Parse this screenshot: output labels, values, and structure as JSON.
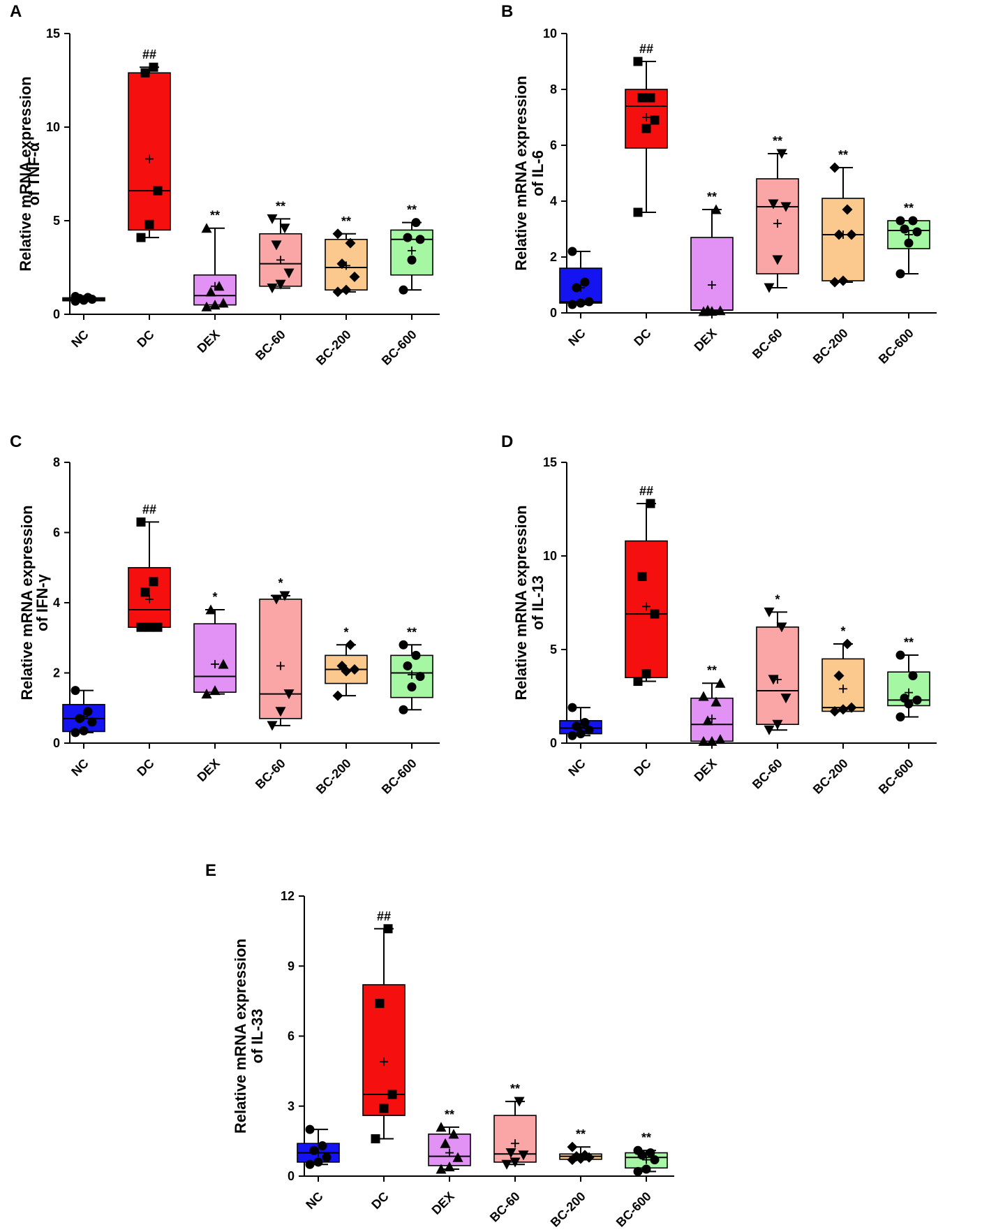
{
  "categories": [
    "NC",
    "DC",
    "DEX",
    "BC-60",
    "BC-200",
    "BC-600"
  ],
  "colors": {
    "NC": "#1414f0",
    "DC": "#f50f0f",
    "DEX": "#e291f5",
    "BC-60": "#fba6a6",
    "BC-200": "#fbc98e",
    "BC-600": "#a6f7a4",
    "axis": "#000000"
  },
  "chart_data": [
    {
      "type": "box",
      "panel": "A",
      "ylabel_line1": "Relative mRNA expression",
      "ylabel_line2": "of TNF-α",
      "ylim": [
        0,
        15
      ],
      "yticks": [
        0,
        5,
        10,
        15
      ],
      "marker": [
        "circle",
        "square",
        "triangle",
        "inverted-triangle",
        "diamond",
        "circle"
      ],
      "series": [
        {
          "name": "NC",
          "min": 0.7,
          "q1": 0.72,
          "median": 0.8,
          "q3": 0.88,
          "max": 0.95,
          "mean": 0.8,
          "sig": "",
          "points": [
            0.7,
            0.75,
            0.8,
            0.85,
            0.9,
            0.95
          ]
        },
        {
          "name": "DC",
          "min": 4.1,
          "q1": 4.5,
          "median": 6.6,
          "q3": 12.9,
          "max": 13.2,
          "mean": 8.3,
          "sig": "##",
          "points": [
            4.1,
            4.8,
            6.6,
            12.9,
            13.2
          ]
        },
        {
          "name": "DEX",
          "min": 0.4,
          "q1": 0.5,
          "median": 1.0,
          "q3": 2.1,
          "max": 4.6,
          "mean": 1.5,
          "sig": "**",
          "points": [
            0.4,
            0.5,
            0.6,
            1.2,
            1.5,
            4.6
          ]
        },
        {
          "name": "BC-60",
          "min": 1.4,
          "q1": 1.5,
          "median": 2.7,
          "q3": 4.3,
          "max": 5.1,
          "mean": 2.9,
          "sig": "**",
          "points": [
            1.4,
            1.6,
            2.2,
            3.7,
            4.6,
            5.1
          ]
        },
        {
          "name": "BC-200",
          "min": 1.2,
          "q1": 1.3,
          "median": 2.5,
          "q3": 4.0,
          "max": 4.3,
          "mean": 2.6,
          "sig": "**",
          "points": [
            1.2,
            1.3,
            2.0,
            2.7,
            3.8,
            4.3
          ]
        },
        {
          "name": "BC-600",
          "min": 1.3,
          "q1": 2.1,
          "median": 4.0,
          "q3": 4.5,
          "max": 4.9,
          "mean": 3.4,
          "sig": "**",
          "points": [
            1.3,
            2.9,
            4.0,
            4.1,
            4.9
          ]
        }
      ]
    },
    {
      "type": "box",
      "panel": "B",
      "ylabel_line1": "Relative mRNA expression",
      "ylabel_line2": "of IL-6",
      "ylim": [
        0,
        10
      ],
      "yticks": [
        0,
        2,
        4,
        6,
        8,
        10
      ],
      "marker": [
        "circle",
        "square",
        "triangle",
        "inverted-triangle",
        "diamond",
        "circle"
      ],
      "series": [
        {
          "name": "NC",
          "min": 0.3,
          "q1": 0.35,
          "median": 0.4,
          "q3": 1.6,
          "max": 2.2,
          "mean": 0.9,
          "sig": "",
          "points": [
            0.3,
            0.35,
            0.4,
            0.9,
            1.1,
            2.2
          ]
        },
        {
          "name": "DC",
          "min": 3.6,
          "q1": 5.9,
          "median": 7.4,
          "q3": 8.0,
          "max": 9.0,
          "mean": 7.0,
          "sig": "##",
          "points": [
            3.6,
            6.6,
            6.9,
            7.7,
            7.7,
            9.0
          ]
        },
        {
          "name": "DEX",
          "min": 0.05,
          "q1": 0.1,
          "median": 0.1,
          "q3": 2.7,
          "max": 3.7,
          "mean": 1.0,
          "sig": "**",
          "points": [
            0.05,
            0.06,
            0.08,
            0.1,
            3.7
          ]
        },
        {
          "name": "BC-60",
          "min": 0.9,
          "q1": 1.4,
          "median": 3.8,
          "q3": 4.8,
          "max": 5.7,
          "mean": 3.2,
          "sig": "**",
          "points": [
            0.9,
            1.9,
            3.8,
            3.9,
            5.7
          ]
        },
        {
          "name": "BC-200",
          "min": 1.1,
          "q1": 1.15,
          "median": 2.8,
          "q3": 4.1,
          "max": 5.2,
          "mean": 2.8,
          "sig": "**",
          "points": [
            1.1,
            1.15,
            2.8,
            2.8,
            3.7,
            5.2
          ]
        },
        {
          "name": "BC-600",
          "min": 1.4,
          "q1": 2.3,
          "median": 2.95,
          "q3": 3.3,
          "max": 3.3,
          "mean": 2.8,
          "sig": "**",
          "points": [
            1.4,
            2.5,
            2.9,
            3.0,
            3.3,
            3.3
          ]
        }
      ]
    },
    {
      "type": "box",
      "panel": "C",
      "ylabel_line1": "Relative mRNA expression",
      "ylabel_line2": "of IFN-γ",
      "ylim": [
        0,
        8
      ],
      "yticks": [
        0,
        2,
        4,
        6,
        8
      ],
      "marker": [
        "circle",
        "square",
        "triangle",
        "inverted-triangle",
        "diamond",
        "circle"
      ],
      "series": [
        {
          "name": "NC",
          "min": 0.3,
          "q1": 0.33,
          "median": 0.7,
          "q3": 1.1,
          "max": 1.5,
          "mean": 0.75,
          "sig": "",
          "points": [
            0.3,
            0.35,
            0.6,
            0.7,
            0.9,
            1.5
          ]
        },
        {
          "name": "DC",
          "min": 3.3,
          "q1": 3.3,
          "median": 3.8,
          "q3": 5.0,
          "max": 6.3,
          "mean": 4.1,
          "sig": "##",
          "points": [
            3.3,
            3.3,
            3.3,
            4.3,
            4.6,
            6.3
          ]
        },
        {
          "name": "DEX",
          "min": 1.4,
          "q1": 1.45,
          "median": 1.9,
          "q3": 3.4,
          "max": 3.8,
          "mean": 2.25,
          "sig": "*",
          "points": [
            1.4,
            1.5,
            2.25,
            3.8
          ]
        },
        {
          "name": "BC-60",
          "min": 0.5,
          "q1": 0.7,
          "median": 1.4,
          "q3": 4.1,
          "max": 4.2,
          "mean": 2.2,
          "sig": "*",
          "points": [
            0.5,
            0.9,
            1.4,
            4.1,
            4.2
          ]
        },
        {
          "name": "BC-200",
          "min": 1.35,
          "q1": 1.7,
          "median": 2.1,
          "q3": 2.5,
          "max": 2.8,
          "mean": 2.1,
          "sig": "*",
          "points": [
            1.35,
            2.05,
            2.1,
            2.2,
            2.8
          ]
        },
        {
          "name": "BC-600",
          "min": 0.95,
          "q1": 1.3,
          "median": 2.0,
          "q3": 2.5,
          "max": 2.8,
          "mean": 1.95,
          "sig": "**",
          "points": [
            0.95,
            1.6,
            1.9,
            2.2,
            2.5,
            2.8
          ]
        }
      ]
    },
    {
      "type": "box",
      "panel": "D",
      "ylabel_line1": "Relative mRNA expression",
      "ylabel_line2": "of IL-13",
      "ylim": [
        0,
        15
      ],
      "yticks": [
        0,
        5,
        10,
        15
      ],
      "marker": [
        "circle",
        "square",
        "triangle",
        "inverted-triangle",
        "diamond",
        "circle"
      ],
      "series": [
        {
          "name": "NC",
          "min": 0.4,
          "q1": 0.5,
          "median": 0.8,
          "q3": 1.2,
          "max": 1.9,
          "mean": 0.85,
          "sig": "",
          "points": [
            0.4,
            0.5,
            0.7,
            0.9,
            1.1,
            1.9
          ]
        },
        {
          "name": "DC",
          "min": 3.3,
          "q1": 3.5,
          "median": 6.9,
          "q3": 10.8,
          "max": 12.8,
          "mean": 7.3,
          "sig": "##",
          "points": [
            3.3,
            3.7,
            6.9,
            8.9,
            12.8
          ]
        },
        {
          "name": "DEX",
          "min": 0.1,
          "q1": 0.1,
          "median": 1.0,
          "q3": 2.4,
          "max": 3.2,
          "mean": 1.3,
          "sig": "**",
          "points": [
            0.1,
            0.1,
            0.2,
            1.2,
            2.2,
            2.5,
            3.2
          ]
        },
        {
          "name": "BC-60",
          "min": 0.7,
          "q1": 1.0,
          "median": 2.8,
          "q3": 6.2,
          "max": 7.0,
          "mean": 3.4,
          "sig": "*",
          "points": [
            0.7,
            1.0,
            2.4,
            3.4,
            6.2,
            7.0
          ]
        },
        {
          "name": "BC-200",
          "min": 1.7,
          "q1": 1.7,
          "median": 1.9,
          "q3": 4.5,
          "max": 5.3,
          "mean": 2.9,
          "sig": "*",
          "points": [
            1.7,
            1.8,
            1.9,
            3.6,
            5.3
          ]
        },
        {
          "name": "BC-600",
          "min": 1.4,
          "q1": 2.0,
          "median": 2.3,
          "q3": 3.8,
          "max": 4.7,
          "mean": 2.7,
          "sig": "**",
          "points": [
            1.4,
            2.1,
            2.3,
            2.4,
            3.6,
            4.7
          ]
        }
      ]
    },
    {
      "type": "box",
      "panel": "E",
      "ylabel_line1": "Relative mRNA expression",
      "ylabel_line2": "of IL-33",
      "ylim": [
        0,
        12
      ],
      "yticks": [
        0,
        3,
        6,
        9,
        12
      ],
      "marker": [
        "circle",
        "square",
        "triangle",
        "inverted-triangle",
        "diamond",
        "circle"
      ],
      "series": [
        {
          "name": "NC",
          "min": 0.5,
          "q1": 0.6,
          "median": 1.0,
          "q3": 1.4,
          "max": 2.0,
          "mean": 1.0,
          "sig": "",
          "points": [
            0.5,
            0.6,
            0.8,
            1.1,
            1.3,
            2.0
          ]
        },
        {
          "name": "DC",
          "min": 1.6,
          "q1": 2.6,
          "median": 3.5,
          "q3": 8.2,
          "max": 10.6,
          "mean": 4.9,
          "sig": "##",
          "points": [
            1.6,
            2.9,
            3.5,
            7.4,
            10.6
          ]
        },
        {
          "name": "DEX",
          "min": 0.3,
          "q1": 0.45,
          "median": 0.85,
          "q3": 1.8,
          "max": 2.1,
          "mean": 1.0,
          "sig": "**",
          "points": [
            0.3,
            0.4,
            0.8,
            1.4,
            1.8,
            2.1
          ]
        },
        {
          "name": "BC-60",
          "min": 0.5,
          "q1": 0.6,
          "median": 0.95,
          "q3": 2.6,
          "max": 3.2,
          "mean": 1.4,
          "sig": "**",
          "points": [
            0.5,
            0.6,
            0.9,
            1.0,
            3.2
          ]
        },
        {
          "name": "BC-200",
          "min": 0.7,
          "q1": 0.72,
          "median": 0.85,
          "q3": 0.95,
          "max": 1.25,
          "mean": 0.85,
          "sig": "**",
          "points": [
            0.7,
            0.75,
            0.8,
            0.85,
            0.9,
            1.25
          ]
        },
        {
          "name": "BC-600",
          "min": 0.2,
          "q1": 0.35,
          "median": 0.8,
          "q3": 1.0,
          "max": 1.1,
          "mean": 0.7,
          "sig": "**",
          "points": [
            0.2,
            0.3,
            0.7,
            0.9,
            1.0,
            1.1
          ]
        }
      ]
    }
  ]
}
